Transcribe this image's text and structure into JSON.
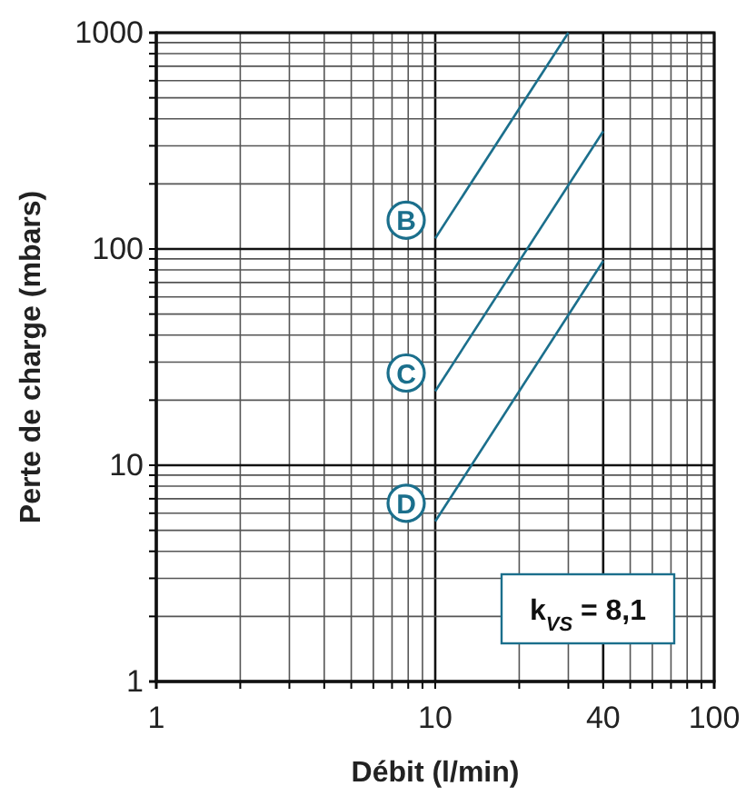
{
  "chart_data": {
    "type": "line",
    "xlabel": "Débit (l/min)",
    "ylabel": "Perte de charge (mbars)",
    "log": "xy",
    "grid": true,
    "marker": "none",
    "line_style": "solid",
    "xlim": [
      1,
      100
    ],
    "ylim": [
      1,
      1000
    ],
    "xticks": [
      1,
      {
        "value": 2,
        "label": null
      },
      {
        "value": 3,
        "label": null
      },
      {
        "value": 4,
        "label": null
      },
      {
        "value": 5,
        "label": null
      },
      {
        "value": 6,
        "label": null
      },
      {
        "value": 7,
        "label": null
      },
      {
        "value": 8,
        "label": null
      },
      {
        "value": 9,
        "label": null
      },
      10,
      {
        "value": 20,
        "label": null
      },
      {
        "value": 30,
        "label": null
      },
      40,
      {
        "value": 50,
        "label": null
      },
      {
        "value": 60,
        "label": null
      },
      {
        "value": 70,
        "label": null
      },
      {
        "value": 80,
        "label": null
      },
      {
        "value": 90,
        "label": null
      },
      100
    ],
    "yticks": [
      1,
      {
        "value": 2,
        "label": null
      },
      {
        "value": 3,
        "label": null
      },
      {
        "value": 4,
        "label": null
      },
      {
        "value": 5,
        "label": null
      },
      {
        "value": 6,
        "label": null
      },
      {
        "value": 7,
        "label": null
      },
      {
        "value": 8,
        "label": null
      },
      {
        "value": 9,
        "label": null
      },
      10,
      {
        "value": 20,
        "label": null
      },
      {
        "value": 30,
        "label": null
      },
      {
        "value": 40,
        "label": null
      },
      {
        "value": 50,
        "label": null
      },
      {
        "value": 60,
        "label": null
      },
      {
        "value": 70,
        "label": null
      },
      {
        "value": 80,
        "label": null
      },
      {
        "value": 90,
        "label": null
      },
      100,
      {
        "value": 200,
        "label": null
      },
      {
        "value": 300,
        "label": null
      },
      {
        "value": 400,
        "label": null
      },
      {
        "value": 500,
        "label": null
      },
      {
        "value": 600,
        "label": null
      },
      {
        "value": 700,
        "label": null
      },
      {
        "value": 800,
        "label": null
      },
      {
        "value": 900,
        "label": null
      },
      1000
    ],
    "series": [
      {
        "name": "B",
        "color": "#1b6f8c",
        "x": [
          10,
          30
        ],
        "values": [
          112,
          1000
        ]
      },
      {
        "name": "C",
        "color": "#1b6f8c",
        "x": [
          10,
          40
        ],
        "values": [
          22,
          350
        ]
      },
      {
        "name": "D",
        "color": "#1b6f8c",
        "x": [
          10,
          40
        ],
        "values": [
          5.5,
          88
        ]
      }
    ],
    "annotations": [
      "k$_{VS}$ = 8,1"
    ]
  }
}
